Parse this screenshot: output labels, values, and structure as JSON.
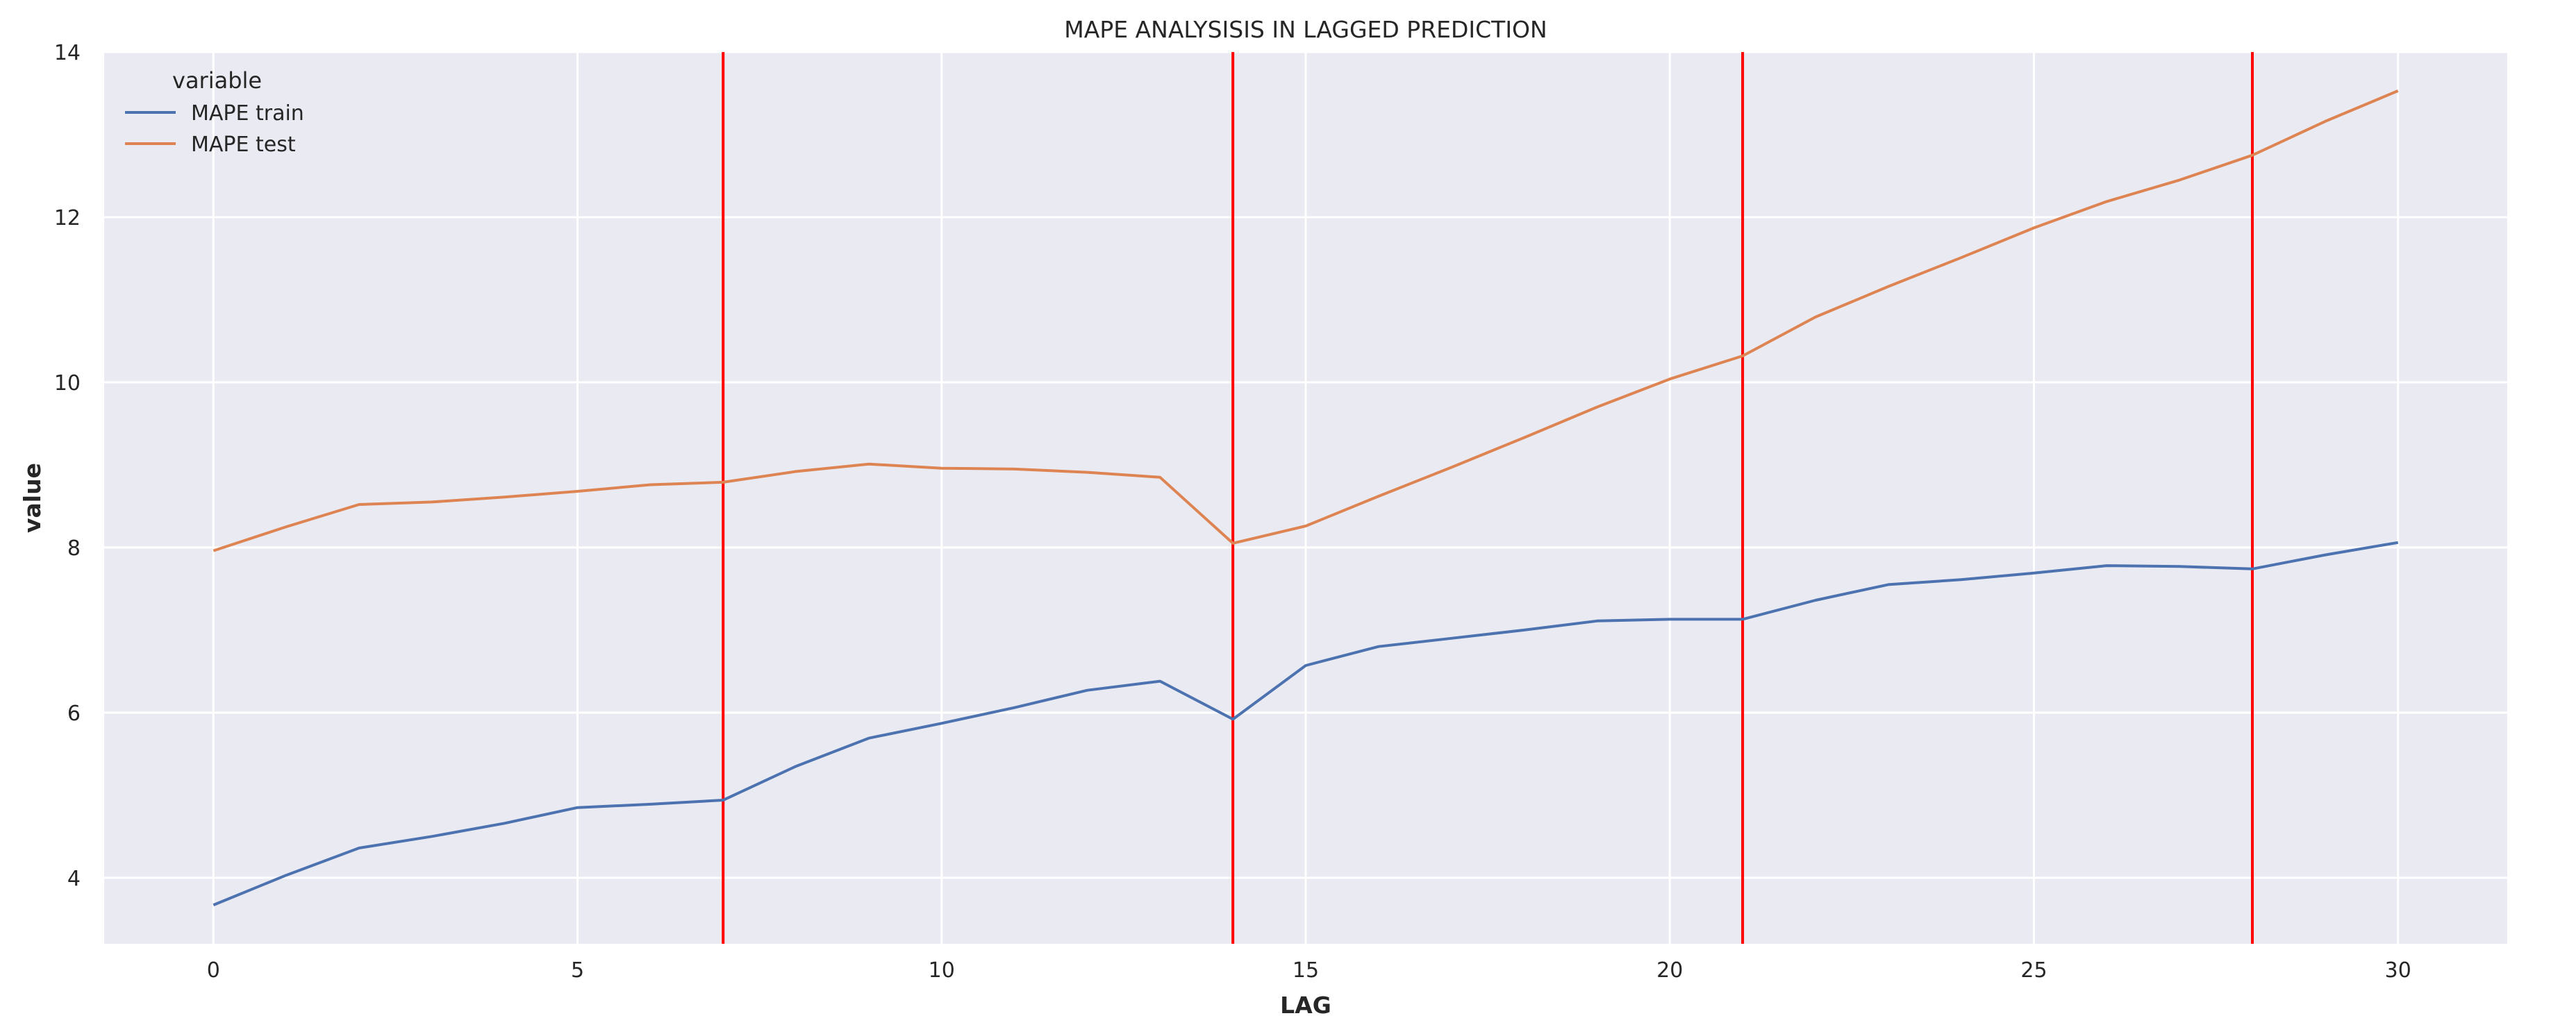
{
  "chart_data": {
    "type": "line",
    "title": "MAPE ANALYSISIS IN LAGGED PREDICTION",
    "xlabel": "LAG",
    "ylabel": "value",
    "xlim": [
      -1.5,
      31.5
    ],
    "ylim": [
      3.2,
      14
    ],
    "xticks": [
      0,
      5,
      10,
      15,
      20,
      25,
      30
    ],
    "yticks": [
      4,
      6,
      8,
      10,
      12,
      14
    ],
    "grid": true,
    "legend": {
      "title": "variable",
      "placement": "top-left"
    },
    "x": [
      0,
      1,
      2,
      3,
      4,
      5,
      6,
      7,
      8,
      9,
      10,
      11,
      12,
      13,
      14,
      15,
      16,
      17,
      18,
      19,
      20,
      21,
      22,
      23,
      24,
      25,
      26,
      27,
      28,
      29,
      30
    ],
    "series": [
      {
        "name": "MAPE train",
        "color": "#4c72b0",
        "values": [
          3.67,
          4.03,
          4.36,
          4.5,
          4.66,
          4.85,
          4.89,
          4.94,
          5.35,
          5.69,
          5.87,
          6.06,
          6.27,
          6.38,
          5.92,
          6.57,
          6.8,
          6.9,
          7.0,
          7.11,
          7.13,
          7.13,
          7.36,
          7.55,
          7.61,
          7.69,
          7.78,
          7.77,
          7.74,
          7.91,
          8.06
        ]
      },
      {
        "name": "MAPE test",
        "color": "#dd8452",
        "values": [
          7.96,
          8.25,
          8.52,
          8.55,
          8.61,
          8.68,
          8.76,
          8.79,
          8.92,
          9.01,
          8.96,
          8.95,
          8.91,
          8.85,
          8.05,
          8.26,
          8.62,
          8.97,
          9.33,
          9.7,
          10.04,
          10.32,
          10.79,
          11.16,
          11.51,
          11.87,
          12.19,
          12.45,
          12.75,
          13.16,
          13.53
        ]
      }
    ],
    "vlines": {
      "x": [
        7,
        14,
        21,
        28
      ],
      "color": "#ff0000"
    },
    "colors": {
      "background": "#eaeaf2",
      "grid": "#ffffff"
    }
  }
}
